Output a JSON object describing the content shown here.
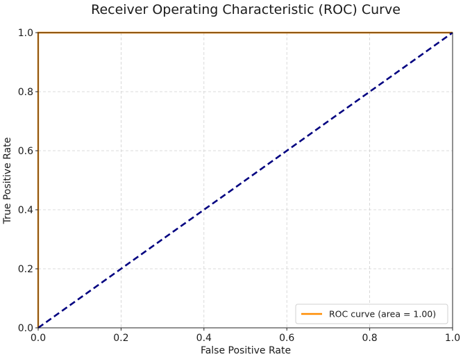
{
  "chart_data": {
    "type": "line",
    "title": "Receiver Operating Characteristic (ROC) Curve",
    "xlabel": "False Positive Rate",
    "ylabel": "True Positive Rate",
    "xlim": [
      0.0,
      1.0
    ],
    "ylim": [
      0.0,
      1.0
    ],
    "x_ticks": [
      "0.0",
      "0.2",
      "0.4",
      "0.6",
      "0.8",
      "1.0"
    ],
    "y_ticks": [
      "0.0",
      "0.2",
      "0.4",
      "0.6",
      "0.8",
      "1.0"
    ],
    "grid": true,
    "legend_position": "lower-right",
    "series": [
      {
        "name": "ROC curve (area = 1.00)",
        "color": "#ff8c00",
        "line_style": "solid",
        "x": [
          0.0,
          0.0,
          1.0
        ],
        "y": [
          0.0,
          1.0,
          1.0
        ]
      },
      {
        "color": "#000080",
        "line_style": "dashed",
        "x": [
          0.0,
          1.0
        ],
        "y": [
          0.0,
          1.0
        ]
      }
    ]
  }
}
